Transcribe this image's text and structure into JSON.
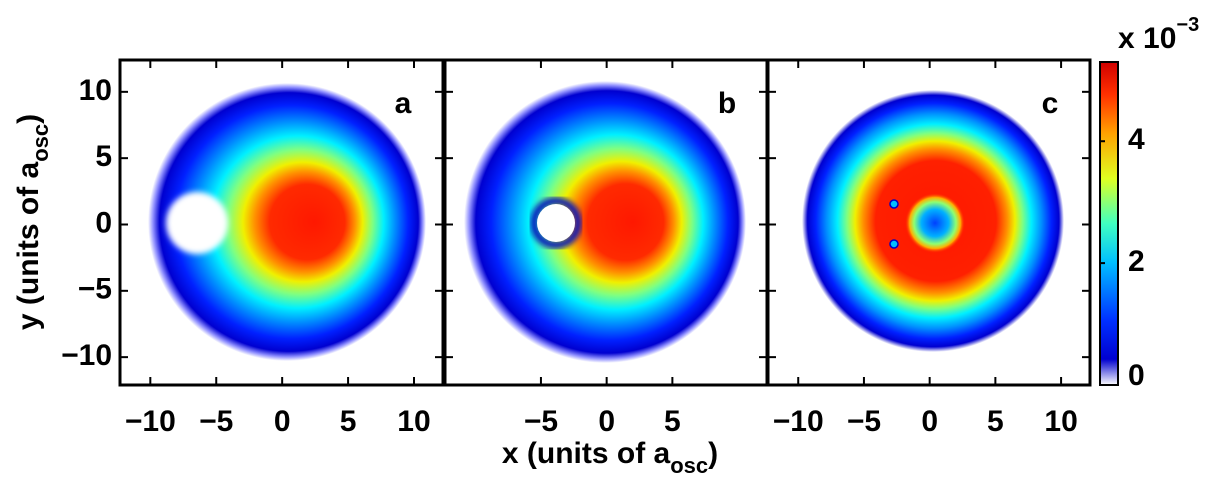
{
  "chart_data": {
    "type": "heatmap",
    "xlabel": [
      "x (units of a",
      "osc",
      ")"
    ],
    "ylabel": [
      "y (units of a",
      "osc",
      ")"
    ],
    "xlim": [
      -12.3,
      12.2
    ],
    "ylim": [
      -12.1,
      12.4
    ],
    "yticks": [
      10,
      5,
      0,
      {
        "value": -5,
        "label": "−5"
      },
      {
        "value": -10,
        "label": "−10"
      }
    ],
    "panels": [
      {
        "label": "a",
        "xticks": [
          {
            "value": -10,
            "label": "−10"
          },
          {
            "value": -5,
            "label": "−5"
          },
          0,
          5,
          10
        ]
      },
      {
        "label": "b",
        "xticks": [
          {
            "value": -5,
            "label": "−5"
          },
          0,
          5
        ]
      },
      {
        "label": "c",
        "xticks": [
          {
            "value": -10,
            "label": "−10"
          },
          {
            "value": -5,
            "label": "−5"
          },
          0,
          5,
          10
        ]
      }
    ],
    "colorbar": {
      "colormap": "jet",
      "clim": [
        0,
        5.3
      ],
      "ticks": [
        0,
        2,
        4
      ],
      "label": "x 10",
      "exponent": "−3"
    }
  }
}
